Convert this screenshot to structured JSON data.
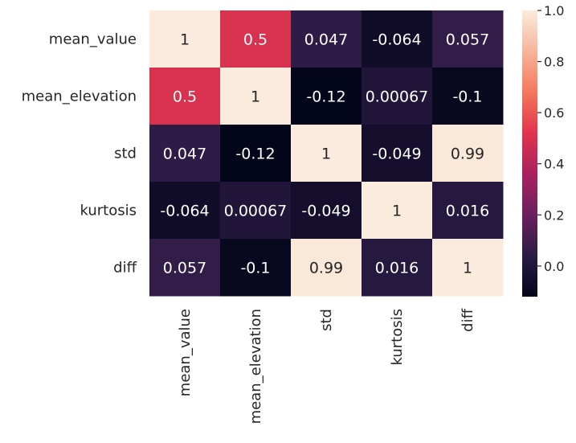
{
  "chart_data": {
    "type": "heatmap",
    "title": "",
    "rows": [
      "mean_value",
      "mean_elevation",
      "std",
      "kurtosis",
      "diff"
    ],
    "columns": [
      "mean_value",
      "mean_elevation",
      "std",
      "kurtosis",
      "diff"
    ],
    "values": [
      [
        1,
        0.5,
        0.047,
        -0.064,
        0.057
      ],
      [
        0.5,
        1,
        -0.12,
        0.00067,
        -0.1
      ],
      [
        0.047,
        -0.12,
        1,
        -0.049,
        0.99
      ],
      [
        -0.064,
        0.00067,
        -0.049,
        1,
        0.016
      ],
      [
        0.057,
        -0.1,
        0.99,
        0.016,
        1
      ]
    ],
    "annotations": [
      [
        "1",
        "0.5",
        "0.047",
        "-0.064",
        "0.057"
      ],
      [
        "0.5",
        "1",
        "-0.12",
        "0.00067",
        "-0.1"
      ],
      [
        "0.047",
        "-0.12",
        "1",
        "-0.049",
        "0.99"
      ],
      [
        "-0.064",
        "0.00067",
        "-0.049",
        "1",
        "0.016"
      ],
      [
        "0.057",
        "-0.1",
        "0.99",
        "0.016",
        "1"
      ]
    ],
    "colorbar": {
      "range": [
        -0.12,
        1.0
      ],
      "ticks": [
        0.0,
        0.2,
        0.4,
        0.6,
        0.8,
        1.0
      ],
      "tick_labels": [
        "0.0",
        "0.2",
        "0.4",
        "0.6",
        "0.8",
        "1.0"
      ],
      "colormap_stops": [
        "#03051a",
        "#2b1c45",
        "#6a1f5e",
        "#a9225e",
        "#e0344d",
        "#f4775b",
        "#f6b59a",
        "#faebdd"
      ]
    },
    "grid": false,
    "legend": "colorbar-right"
  }
}
